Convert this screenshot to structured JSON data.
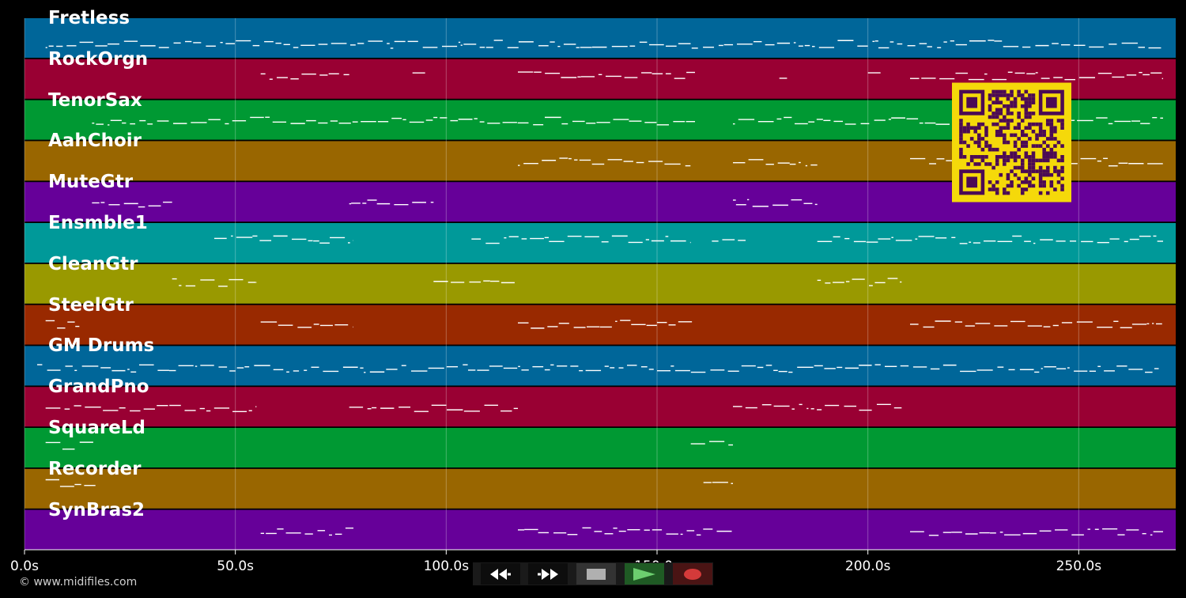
{
  "tracks": [
    {
      "name": "Fretless",
      "color": "#006699"
    },
    {
      "name": "RockOrgn",
      "color": "#990033"
    },
    {
      "name": "TenorSax",
      "color": "#009933"
    },
    {
      "name": "AahChoir",
      "color": "#996600"
    },
    {
      "name": "MuteGtr",
      "color": "#660099"
    },
    {
      "name": "Ensmble1",
      "color": "#009999"
    },
    {
      "name": "CleanGtr",
      "color": "#999900"
    },
    {
      "name": "SteelGtr",
      "color": "#992900"
    },
    {
      "name": "GM Drums",
      "color": "#006699"
    },
    {
      "name": "GrandPno",
      "color": "#990033"
    },
    {
      "name": "SquareLd",
      "color": "#009933"
    },
    {
      "name": "Recorder",
      "color": "#996600"
    },
    {
      "name": "SynBras2",
      "color": "#660099"
    }
  ],
  "timeline": {
    "start_seconds": 0,
    "end_seconds": 273,
    "ticks": [
      0,
      50,
      100,
      150,
      200,
      250
    ],
    "tick_labels": [
      "0.0s",
      "50.0s",
      "100.0s",
      "150.0s",
      "200.0s",
      "250.0s"
    ]
  },
  "transport": {
    "rewind": {
      "icon": "rewind-icon"
    },
    "fast_forward": {
      "icon": "fast-forward-icon"
    },
    "stop": {
      "icon": "stop-icon"
    },
    "play": {
      "icon": "play-icon",
      "color": "#2e7d32"
    },
    "record": {
      "icon": "record-icon",
      "color": "#c62828"
    }
  },
  "copyright": "© www.midifiles.com",
  "qr_code": {
    "icon": "qr-code-icon",
    "background": "#f5d90a",
    "foreground": "#4b0a55"
  }
}
